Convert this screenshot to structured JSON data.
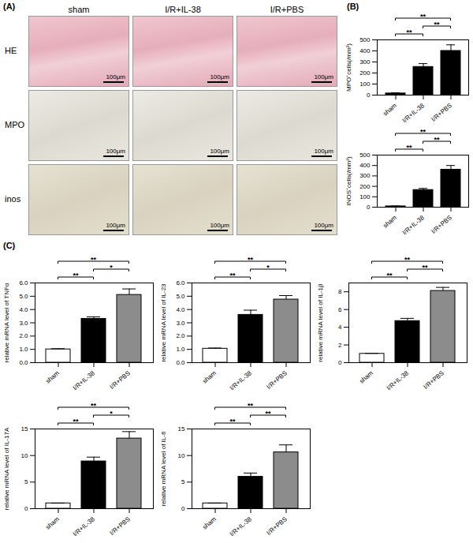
{
  "panel_labels": [
    "(A)",
    "(B)",
    "(C)"
  ],
  "micrographs": {
    "columns": [
      "sham",
      "I/R+IL-38",
      "I/R+PBS"
    ],
    "rows": [
      "HE",
      "MPO",
      "inos"
    ],
    "scale_bar": "100μm"
  },
  "chart_data": [
    {
      "type": "bar",
      "ylabel": "MPO⁺cells(/mm²)",
      "categories": [
        "sham",
        "I/R+IL-38",
        "I/R+PBS"
      ],
      "values": [
        15,
        255,
        400
      ],
      "errors": [
        5,
        30,
        55
      ],
      "colors": [
        "#000000",
        "#000000",
        "#000000"
      ],
      "ylim": [
        0,
        500
      ],
      "yticks": [
        0,
        100,
        200,
        300,
        400,
        500
      ],
      "annotations": [
        {
          "from": "sham",
          "to": "I/R+IL-38",
          "text": "**"
        },
        {
          "from": "I/R+IL-38",
          "to": "I/R+PBS",
          "text": "**"
        },
        {
          "from": "sham",
          "to": "I/R+PBS",
          "text": "**"
        }
      ]
    },
    {
      "type": "bar",
      "ylabel": "INOS⁺cells(/mm²)",
      "categories": [
        "sham",
        "I/R+IL-38",
        "I/R+PBS"
      ],
      "values": [
        8,
        165,
        360
      ],
      "errors": [
        3,
        15,
        40
      ],
      "colors": [
        "#000000",
        "#000000",
        "#000000"
      ],
      "ylim": [
        0,
        500
      ],
      "yticks": [
        0,
        100,
        200,
        300,
        400,
        500
      ],
      "annotations": [
        {
          "from": "sham",
          "to": "I/R+IL-38",
          "text": "**"
        },
        {
          "from": "I/R+IL-38",
          "to": "I/R+PBS",
          "text": "**"
        },
        {
          "from": "sham",
          "to": "I/R+PBS",
          "text": "**"
        }
      ]
    },
    {
      "type": "bar",
      "ylabel": "relative mRNA level of TNFα",
      "categories": [
        "sham",
        "I/R+IL-38",
        "I/R+PBS"
      ],
      "values": [
        1,
        3.3,
        5.1
      ],
      "errors": [
        0.05,
        0.15,
        0.45
      ],
      "colors": [
        "#ffffff",
        "#000000",
        "#8c8c8c"
      ],
      "ylim": [
        0,
        6
      ],
      "yticks": [
        0,
        1,
        2,
        3,
        4,
        5,
        6
      ],
      "annotations": [
        {
          "from": "sham",
          "to": "I/R+IL-38",
          "text": "**"
        },
        {
          "from": "I/R+IL-38",
          "to": "I/R+PBS",
          "text": "*"
        },
        {
          "from": "sham",
          "to": "I/R+PBS",
          "text": "**"
        }
      ]
    },
    {
      "type": "bar",
      "ylabel": "relative mRNA level of IL-23",
      "categories": [
        "sham",
        "I/R+IL-38",
        "I/R+PBS"
      ],
      "values": [
        1.05,
        3.6,
        4.75
      ],
      "errors": [
        0.05,
        0.35,
        0.3
      ],
      "colors": [
        "#ffffff",
        "#000000",
        "#8c8c8c"
      ],
      "ylim": [
        0,
        6
      ],
      "yticks": [
        0,
        1,
        2,
        3,
        4,
        5,
        6
      ],
      "annotations": [
        {
          "from": "sham",
          "to": "I/R+IL-38",
          "text": "**"
        },
        {
          "from": "I/R+IL-38",
          "to": "I/R+PBS",
          "text": "*"
        },
        {
          "from": "sham",
          "to": "I/R+PBS",
          "text": "**"
        }
      ]
    },
    {
      "type": "bar",
      "ylabel": "relative mRNA level of IL-1β",
      "categories": [
        "sham",
        "I/R+IL-38",
        "I/R+PBS"
      ],
      "values": [
        1,
        4.7,
        8.1
      ],
      "errors": [
        0.05,
        0.3,
        0.4
      ],
      "colors": [
        "#ffffff",
        "#000000",
        "#8c8c8c"
      ],
      "ylim": [
        0,
        9
      ],
      "yticks": [
        0,
        2,
        4,
        6,
        8
      ],
      "annotations": [
        {
          "from": "sham",
          "to": "I/R+IL-38",
          "text": "**"
        },
        {
          "from": "I/R+IL-38",
          "to": "I/R+PBS",
          "text": "**"
        },
        {
          "from": "sham",
          "to": "I/R+PBS",
          "text": "**"
        }
      ]
    },
    {
      "type": "bar",
      "ylabel": "relative mRNA level of IL-17A",
      "categories": [
        "sham",
        "I/R+IL-38",
        "I/R+PBS"
      ],
      "values": [
        1,
        8.9,
        13.2
      ],
      "errors": [
        0.05,
        0.8,
        1.3
      ],
      "colors": [
        "#ffffff",
        "#000000",
        "#8c8c8c"
      ],
      "ylim": [
        0,
        15
      ],
      "yticks": [
        0,
        5,
        10,
        15
      ],
      "annotations": [
        {
          "from": "sham",
          "to": "I/R+IL-38",
          "text": "**"
        },
        {
          "from": "I/R+IL-38",
          "to": "I/R+PBS",
          "text": "*"
        },
        {
          "from": "sham",
          "to": "I/R+PBS",
          "text": "**"
        }
      ]
    },
    {
      "type": "bar",
      "ylabel": "relative mRNA level of IL-6",
      "categories": [
        "sham",
        "I/R+IL-38",
        "I/R+PBS"
      ],
      "values": [
        1,
        6,
        10.6
      ],
      "errors": [
        0.05,
        0.7,
        1.4
      ],
      "colors": [
        "#ffffff",
        "#000000",
        "#8c8c8c"
      ],
      "ylim": [
        0,
        15
      ],
      "yticks": [
        0,
        5,
        10,
        15
      ],
      "annotations": [
        {
          "from": "sham",
          "to": "I/R+IL-38",
          "text": "**"
        },
        {
          "from": "I/R+IL-38",
          "to": "I/R+PBS",
          "text": "**"
        },
        {
          "from": "sham",
          "to": "I/R+PBS",
          "text": "**"
        }
      ]
    }
  ]
}
